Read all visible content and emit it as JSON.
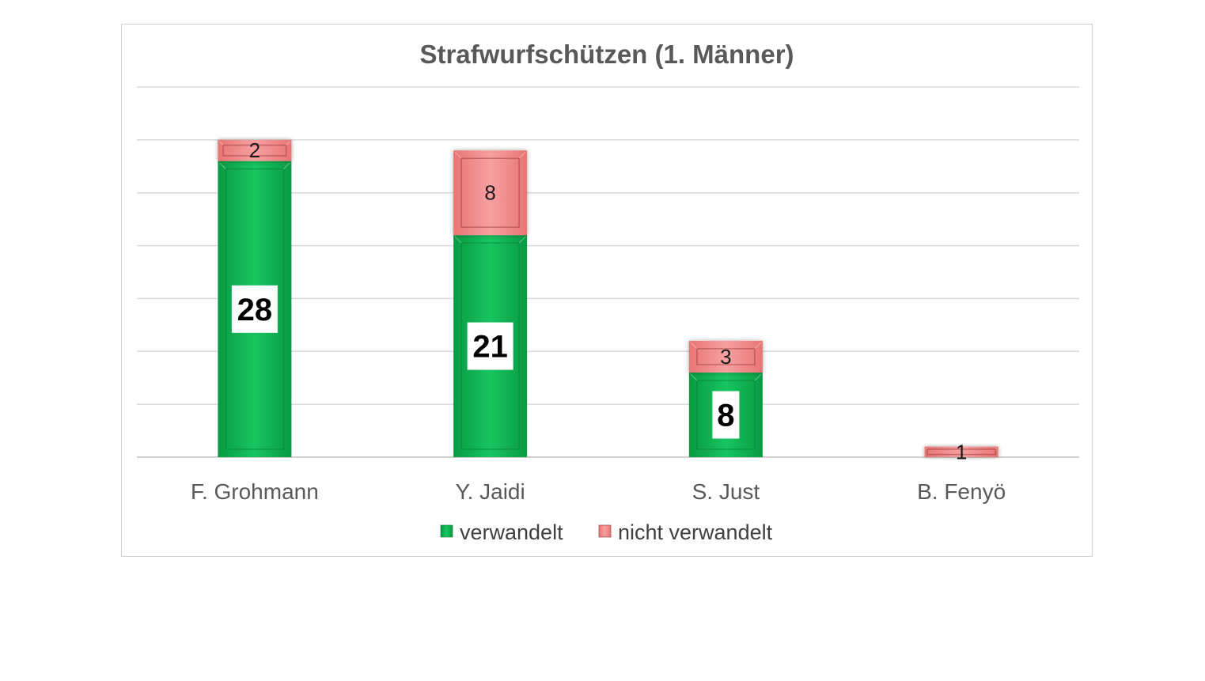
{
  "chart_data": {
    "type": "bar",
    "stacked": true,
    "title": "Strafwurfschützen (1. Männer)",
    "categories": [
      "F. Grohmann",
      "Y. Jaidi",
      "S. Just",
      "B. Fenyö"
    ],
    "series": [
      {
        "name": "verwandelt",
        "color": "#0fb854",
        "values": [
          28,
          21,
          8,
          null
        ]
      },
      {
        "name": "nicht verwandelt",
        "color": "#f28b8b",
        "values": [
          2,
          8,
          3,
          1
        ]
      }
    ],
    "ylim": [
      0,
      35
    ],
    "ytick_step": 5,
    "grid": true,
    "legend_position": "bottom",
    "xlabel": "",
    "ylabel": ""
  }
}
